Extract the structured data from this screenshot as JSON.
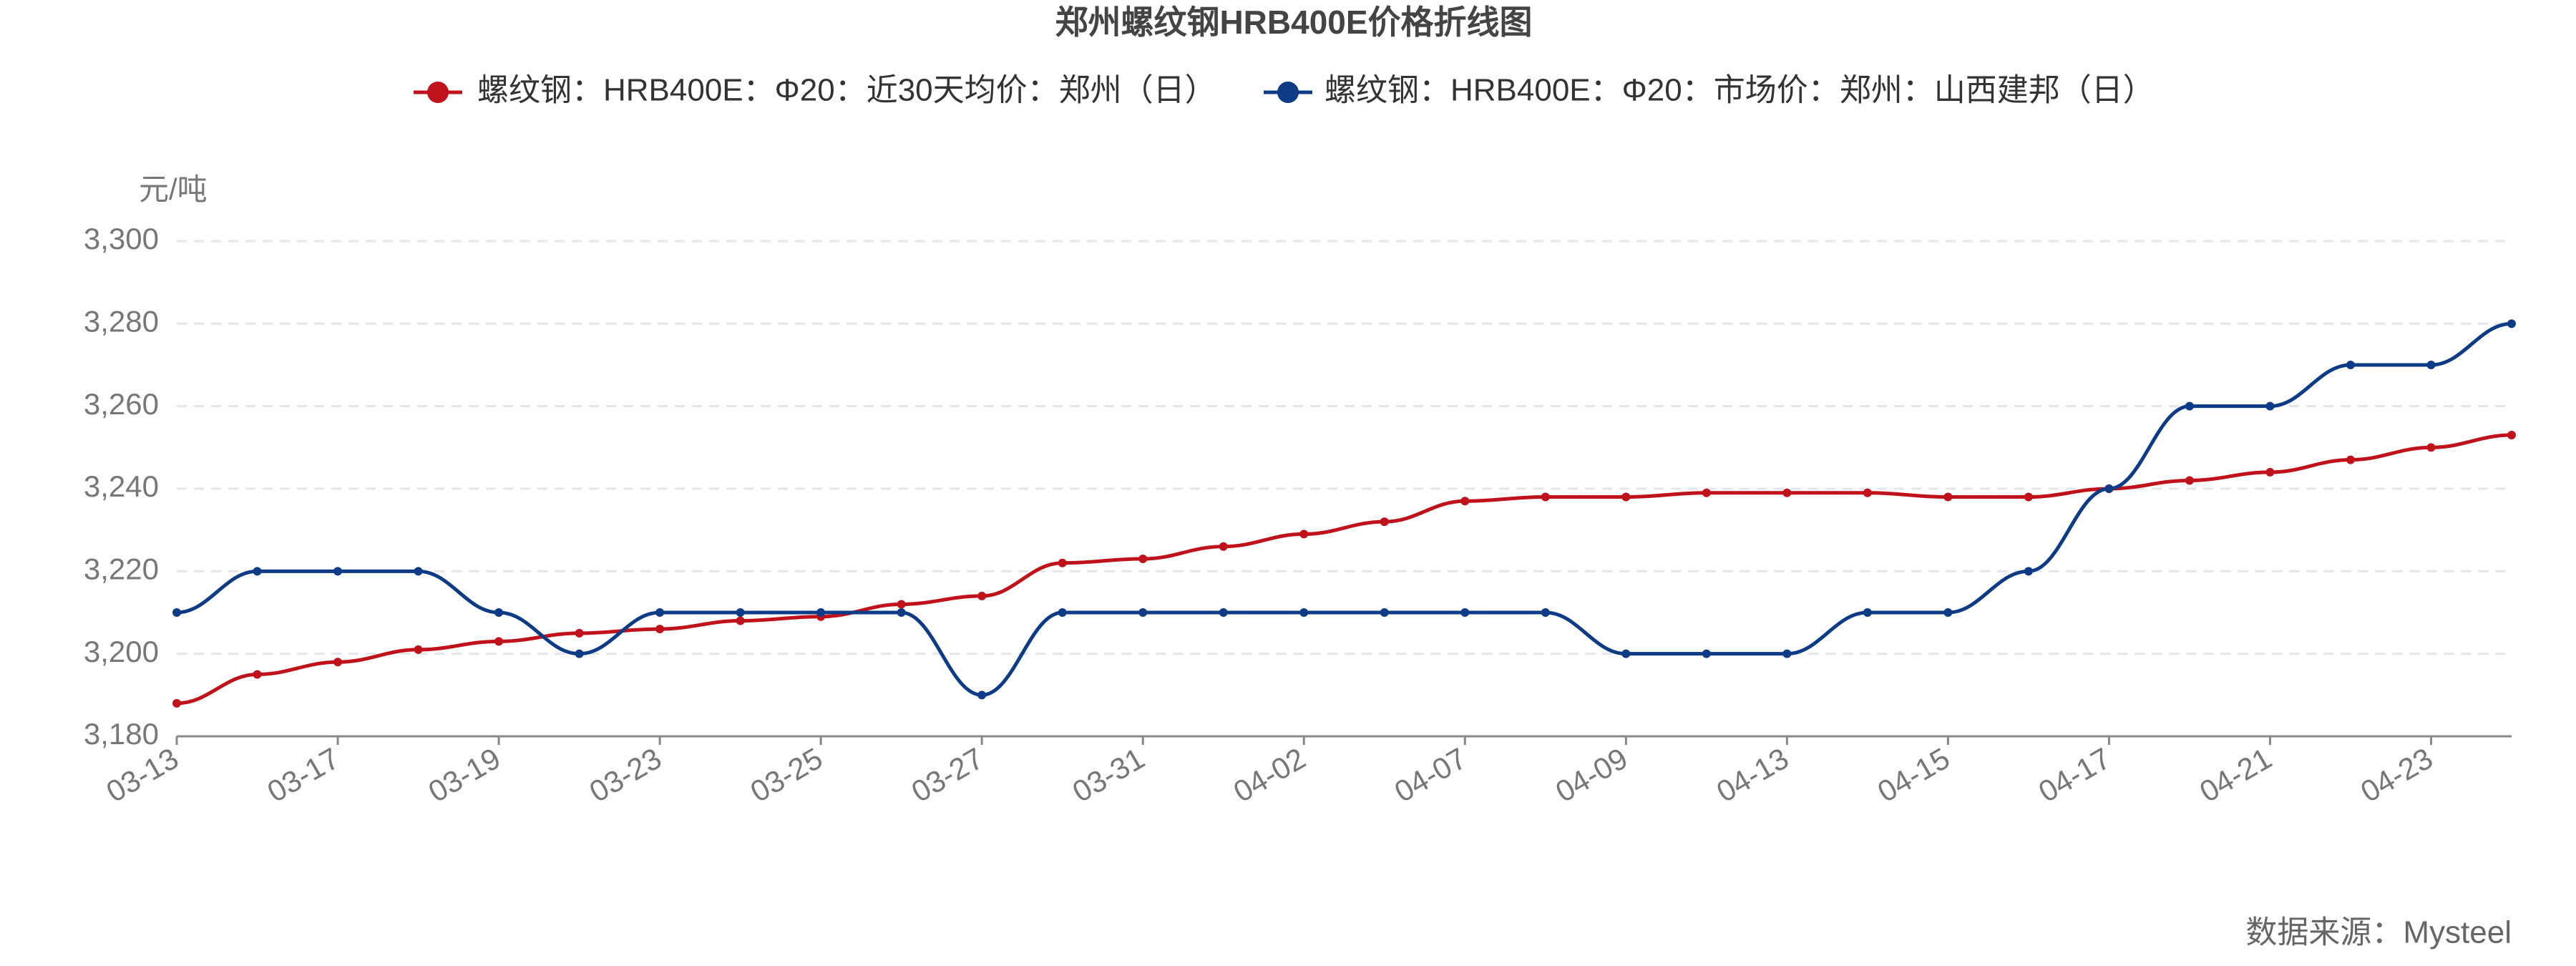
{
  "chart_data": {
    "type": "line",
    "title": "郑州螺纹钢HRB400E价格折线图",
    "y_label": "元/吨",
    "source": "数据来源：Mysteel",
    "categories": [
      "03-13",
      null,
      "03-17",
      null,
      "03-19",
      null,
      "03-23",
      null,
      "03-25",
      null,
      "03-27",
      null,
      "03-31",
      null,
      "04-02",
      null,
      "04-07",
      null,
      "04-09",
      null,
      "04-13",
      null,
      "04-15",
      null,
      "04-17",
      null,
      "04-21",
      null,
      "04-23",
      null
    ],
    "series": [
      {
        "name": "螺纹钢：HRB400E：Φ20：近30天均价：郑州（日）",
        "color": "#c0121b",
        "values": [
          3188,
          3195,
          3198,
          3201,
          3203,
          3205,
          3206,
          3208,
          3209,
          3212,
          3214,
          3222,
          3223,
          3226,
          3229,
          3232,
          3237,
          3238,
          3238,
          3239,
          3239,
          3239,
          3238,
          3238,
          3240,
          3242,
          3244,
          3247,
          3250,
          3253
        ]
      },
      {
        "name": "螺纹钢：HRB400E：Φ20：市场价：郑州：山西建邦（日）",
        "color": "#0d3b85",
        "values": [
          3210,
          3220,
          3220,
          3220,
          3210,
          3200,
          3210,
          3210,
          3210,
          3210,
          3190,
          3210,
          3210,
          3210,
          3210,
          3210,
          3210,
          3210,
          3200,
          3200,
          3200,
          3210,
          3210,
          3220,
          3240,
          3260,
          3260,
          3270,
          3270,
          3280
        ]
      }
    ],
    "ylim": [
      3180,
      3300
    ],
    "yticks": [
      {
        "value": 3180,
        "label": "3,180"
      },
      {
        "value": 3200,
        "label": "3,200"
      },
      {
        "value": 3220,
        "label": "3,220"
      },
      {
        "value": 3240,
        "label": "3,240"
      },
      {
        "value": 3260,
        "label": "3,260"
      },
      {
        "value": 3280,
        "label": "3,280"
      },
      {
        "value": 3300,
        "label": "3,300"
      }
    ],
    "grid": true,
    "legend": "top"
  }
}
